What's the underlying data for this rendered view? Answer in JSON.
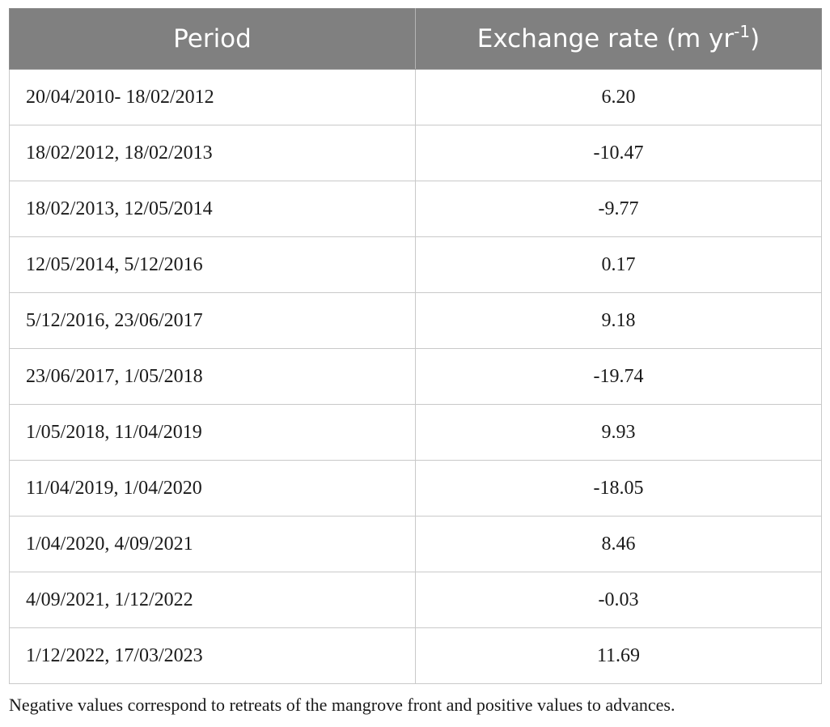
{
  "table": {
    "headers": {
      "period": "Period",
      "rate": "Exchange rate (m yr",
      "rate_sup": "-1",
      "rate_close": ")"
    },
    "rows": [
      {
        "period": "20/04/2010- 18/02/2012",
        "rate": "6.20"
      },
      {
        "period": "18/02/2012, 18/02/2013",
        "rate": "-10.47"
      },
      {
        "period": "18/02/2013, 12/05/2014",
        "rate": "-9.77"
      },
      {
        "period": "12/05/2014, 5/12/2016",
        "rate": "0.17"
      },
      {
        "period": "5/12/2016, 23/06/2017",
        "rate": "9.18"
      },
      {
        "period": "23/06/2017, 1/05/2018",
        "rate": "-19.74"
      },
      {
        "period": "1/05/2018, 11/04/2019",
        "rate": "9.93"
      },
      {
        "period": "11/04/2019, 1/04/2020",
        "rate": "-18.05"
      },
      {
        "period": "1/04/2020, 4/09/2021",
        "rate": "8.46"
      },
      {
        "period": "4/09/2021, 1/12/2022",
        "rate": "-0.03"
      },
      {
        "period": "1/12/2022, 17/03/2023",
        "rate": "11.69"
      }
    ]
  },
  "footnote": "Negative values correspond to retreats of the mangrove front and positive values to advances.",
  "colors": {
    "header_bg": "#808080",
    "header_text": "#ffffff",
    "grid": "#c9c9c9",
    "text": "#1a1a1a"
  }
}
